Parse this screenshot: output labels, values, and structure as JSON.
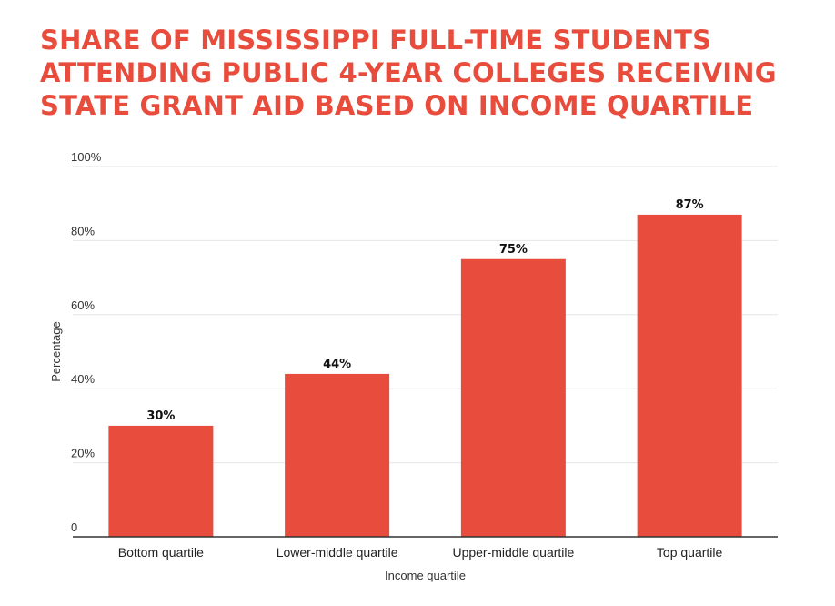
{
  "title_lines": [
    "SHARE OF MISSISSIPPI FULL-TIME STUDENTS",
    "ATTENDING PUBLIC 4-YEAR COLLEGES RECEIVING",
    "STATE GRANT AID BASED ON INCOME QUARTILE"
  ],
  "colors": {
    "accent": "#e84c3d",
    "bar": "#e84c3d",
    "gridline": "#e6e6e6",
    "baseline": "#333333"
  },
  "chart_data": {
    "type": "bar",
    "title": "SHARE OF MISSISSIPPI FULL-TIME STUDENTS ATTENDING PUBLIC 4-YEAR COLLEGES RECEIVING STATE GRANT AID BASED ON INCOME QUARTILE",
    "categories": [
      "Bottom quartile",
      "Lower-middle quartile",
      "Upper-middle quartile",
      "Top quartile"
    ],
    "values": [
      30,
      44,
      75,
      87
    ],
    "data_labels": [
      "30%",
      "44%",
      "75%",
      "87%"
    ],
    "xlabel": "Income quartile",
    "ylabel": "Percentage",
    "ylim": [
      0,
      100
    ],
    "yticks": [
      0,
      20,
      40,
      60,
      80,
      100
    ],
    "ytick_labels": [
      "0",
      "20%",
      "40%",
      "60%",
      "80%",
      "100%"
    ],
    "grid": true,
    "legend": "none"
  }
}
